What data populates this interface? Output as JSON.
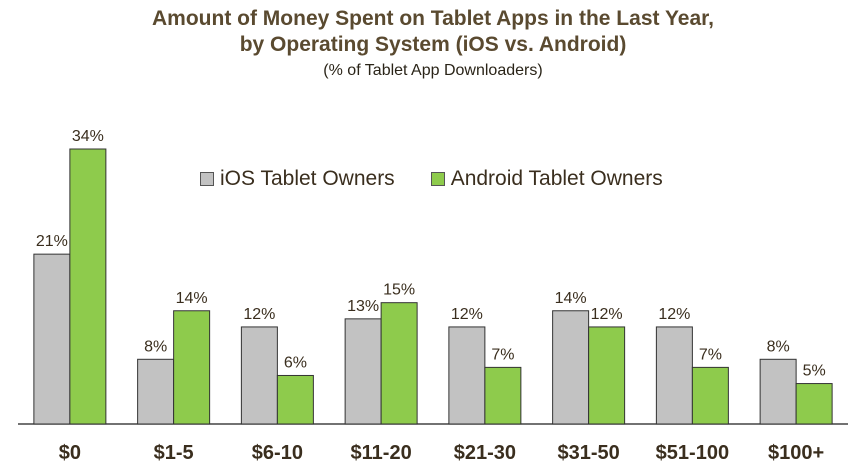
{
  "chart_data": {
    "type": "bar",
    "title_line1": "Amount of Money Spent on Tablet Apps in the Last Year,",
    "title_line2": "by Operating System (iOS vs. Android)",
    "subtitle": "(% of Tablet App Downloaders)",
    "categories": [
      "$0",
      "$1-5",
      "$6-10",
      "$11-20",
      "$21-30",
      "$31-50",
      "$51-100",
      "$100+"
    ],
    "series": [
      {
        "name": "iOS Tablet Owners",
        "color": "#c2c2c2",
        "values": [
          21,
          8,
          12,
          13,
          12,
          14,
          12,
          8
        ],
        "labels": [
          "21%",
          "8%",
          "12%",
          "13%",
          "12%",
          "14%",
          "12%",
          "8%"
        ]
      },
      {
        "name": "Android Tablet Owners",
        "color": "#8ecb4c",
        "values": [
          34,
          14,
          6,
          15,
          7,
          12,
          7,
          5
        ],
        "labels": [
          "34%",
          "14%",
          "6%",
          "15%",
          "7%",
          "12%",
          "7%",
          "5%"
        ]
      }
    ],
    "ylim": [
      0,
      34
    ],
    "legend_position": "top-center",
    "grid": false
  }
}
